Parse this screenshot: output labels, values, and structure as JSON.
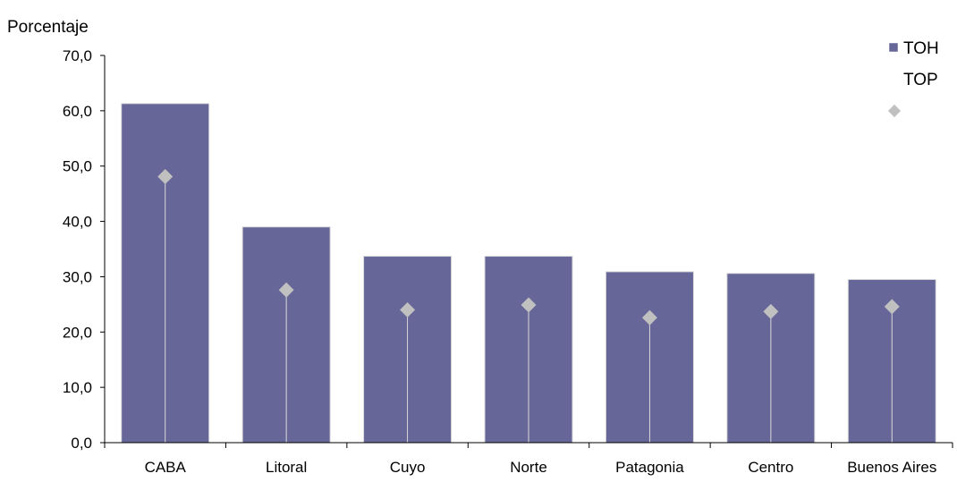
{
  "chart_data": {
    "type": "bar",
    "ylabel": "Porcentaje",
    "ylim": [
      0,
      70
    ],
    "yticks": [
      "0,0",
      "10,0",
      "20,0",
      "30,0",
      "40,0",
      "50,0",
      "60,0",
      "70,0"
    ],
    "categories": [
      "CABA",
      "Litoral",
      "Cuyo",
      "Norte",
      "Patagonia",
      "Centro",
      "Buenos Aires"
    ],
    "series": [
      {
        "name": "TOH",
        "kind": "bar",
        "color": "#666699",
        "values": [
          61.3,
          39.0,
          33.7,
          33.7,
          30.9,
          30.6,
          29.5
        ]
      },
      {
        "name": "TOP",
        "kind": "marker",
        "color": "#c0c0c0",
        "values": [
          48.1,
          27.6,
          24.0,
          24.9,
          22.6,
          23.7,
          24.6
        ]
      }
    ],
    "grid": false,
    "legend": "top-right"
  }
}
